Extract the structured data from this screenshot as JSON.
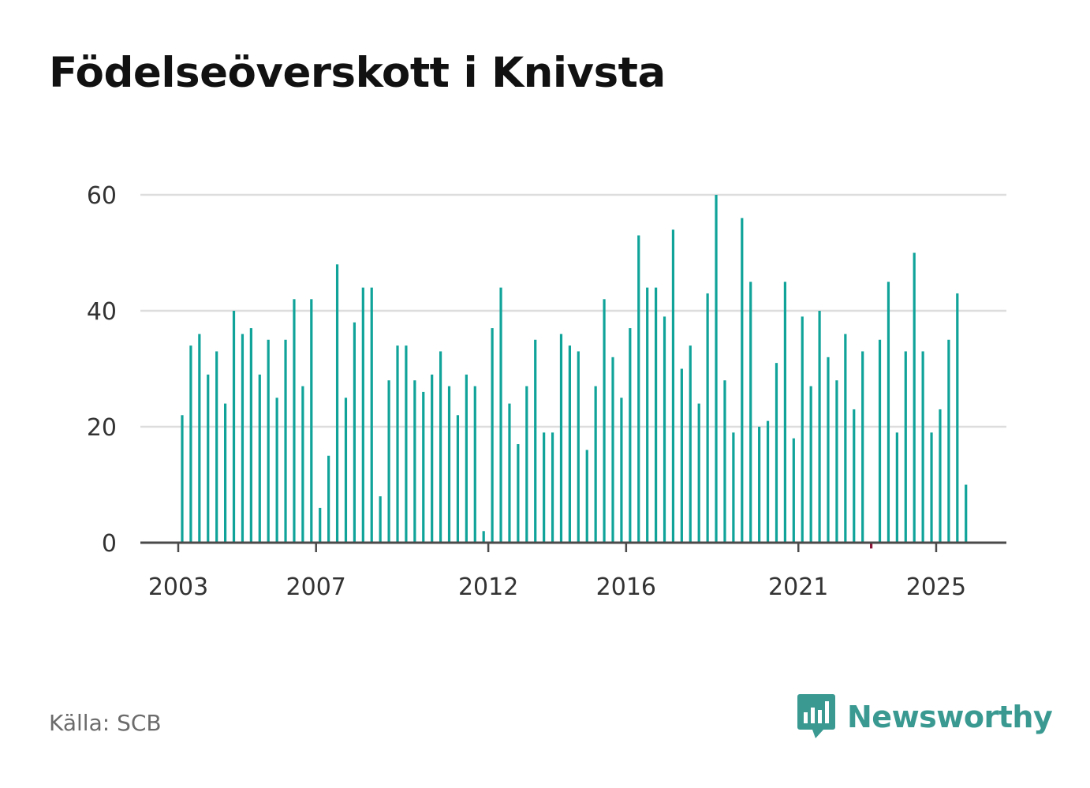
{
  "title": "Födelseöverskott i Knivsta",
  "source": "Källa: SCB",
  "brand": {
    "name": "Newsworthy",
    "logo_icon": "bar-chart-speech-bubble-icon"
  },
  "colors": {
    "bar": "#0fa39a",
    "negative_marker": "#8b1538",
    "axis": "#4a4a4a",
    "grid": "#dddddd",
    "brand": "#3a9a92"
  },
  "chart_data": {
    "type": "bar",
    "title": "Födelseöverskott i Knivsta",
    "xlabel": "",
    "ylabel": "",
    "ylim": [
      0,
      60
    ],
    "y_ticks": [
      "0",
      "20",
      "40",
      "60"
    ],
    "y_tick_values": [
      0,
      20,
      40,
      60
    ],
    "x_ticks": [
      {
        "label": "2003",
        "index": 0
      },
      {
        "label": "2007",
        "index": 16
      },
      {
        "label": "2012",
        "index": 36
      },
      {
        "label": "2016",
        "index": 52
      },
      {
        "label": "2021",
        "index": 72
      },
      {
        "label": "2025",
        "index": 88
      }
    ],
    "grid": true,
    "values": [
      22,
      34,
      36,
      29,
      33,
      24,
      40,
      36,
      37,
      29,
      35,
      25,
      35,
      42,
      27,
      42,
      6,
      15,
      48,
      25,
      38,
      44,
      44,
      8,
      28,
      34,
      34,
      28,
      26,
      29,
      33,
      27,
      22,
      29,
      27,
      2,
      37,
      44,
      24,
      17,
      27,
      35,
      19,
      19,
      36,
      34,
      33,
      16,
      27,
      42,
      32,
      25,
      37,
      53,
      44,
      44,
      39,
      54,
      30,
      34,
      24,
      43,
      60,
      28,
      19,
      56,
      45,
      20,
      21,
      31,
      45,
      18,
      39,
      27,
      40,
      32,
      28,
      36,
      23,
      33,
      -1,
      35,
      45,
      19,
      33,
      50,
      33,
      19,
      23,
      35,
      43,
      10
    ]
  }
}
